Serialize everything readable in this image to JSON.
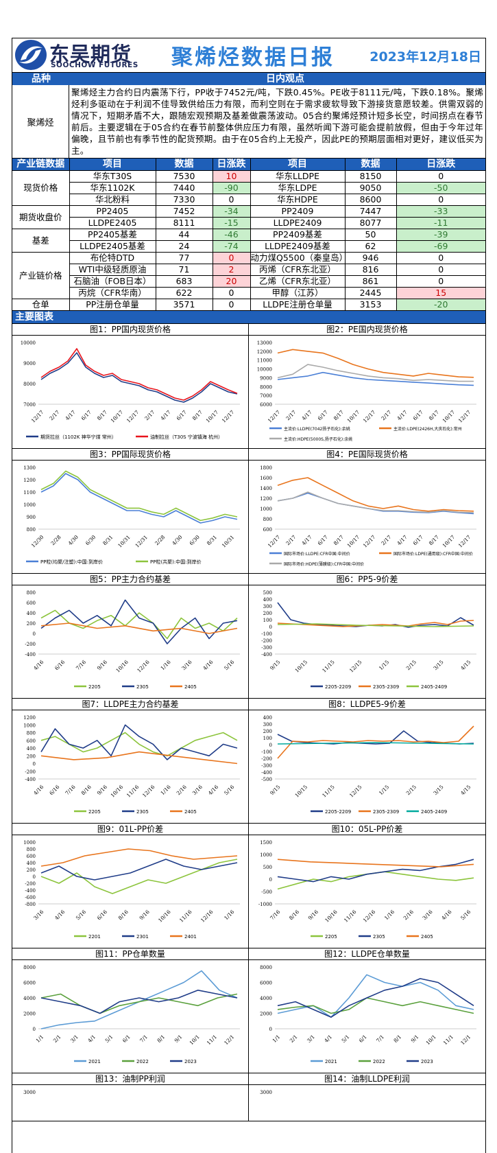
{
  "header": {
    "logo_cn": "东吴期货",
    "logo_en": "SOOCHOW FUTURES",
    "title": "聚烯烃数据日报",
    "date": "2023年12月18日"
  },
  "view": {
    "col1": "品种",
    "col2": "日内观点",
    "label": "聚烯烃",
    "text": "聚烯烃主力合约日内震荡下行，PP收于7452元/吨，下跌0.45%。PE收于8111元/吨，下跌0.18%。聚烯烃利多驱动在于利润不佳导致供给压力有限，而利空则在于需求疲软导致下游接货意愿较差。供需双弱的情况下，短期矛盾不大，跟随宏观预期及基差做震荡波动。05合约聚烯烃预计短多长空，时间拐点在春节前后。主要逻辑在于05合约在春节前整体供应压力有限，虽然听闻下游可能会提前放假，但由于今年过年偏晚，且节前也有季节性的配货预期。由于在05合约上无投产，因此PE的预期层面相对更好，建议低买为主。"
  },
  "table": {
    "headers": [
      "产业链数据",
      "项目",
      "数据",
      "日涨跌",
      "项目",
      "数据",
      "日涨跌"
    ],
    "groups": [
      {
        "name": "现货价格",
        "rows": [
          {
            "a": "华东T30S",
            "av": "7530",
            "ac": "10",
            "at": "up",
            "b": "华东LLDPE",
            "bv": "8150",
            "bc": "0",
            "bt": ""
          },
          {
            "a": "华东1102K",
            "av": "7440",
            "ac": "-90",
            "at": "dn",
            "b": "华东LDPE",
            "bv": "9050",
            "bc": "-50",
            "bt": "dn"
          },
          {
            "a": "华北粉料",
            "av": "7330",
            "ac": "0",
            "at": "",
            "b": "华东HDPE",
            "bv": "8600",
            "bc": "0",
            "bt": ""
          }
        ]
      },
      {
        "name": "期货收盘价",
        "rows": [
          {
            "a": "PP2405",
            "av": "7452",
            "ac": "-34",
            "at": "dn",
            "b": "PP2409",
            "bv": "7447",
            "bc": "-33",
            "bt": "dn"
          },
          {
            "a": "LLDPE2405",
            "av": "8111",
            "ac": "-15",
            "at": "dn",
            "b": "LLDPE2409",
            "bv": "8077",
            "bc": "-11",
            "bt": "dn"
          }
        ]
      },
      {
        "name": "基差",
        "rows": [
          {
            "a": "PP2405基差",
            "av": "44",
            "ac": "-46",
            "at": "dn",
            "b": "PP2409基差",
            "bv": "50",
            "bc": "-39",
            "bt": "dn"
          },
          {
            "a": "LLDPE2405基差",
            "av": "24",
            "ac": "-74",
            "at": "dn",
            "b": "LLDPE2409基差",
            "bv": "62",
            "bc": "-69",
            "bt": "dn"
          }
        ]
      },
      {
        "name": "产业链价格",
        "rows": [
          {
            "a": "布伦特DTD",
            "av": "77",
            "ac": "0",
            "at": "up",
            "b": "动力煤Q5500（秦皇岛）",
            "bv": "946",
            "bc": "0",
            "bt": ""
          },
          {
            "a": "WTI中级轻质原油",
            "av": "71",
            "ac": "2",
            "at": "up",
            "b": "丙烯（CFR东北亚）",
            "bv": "816",
            "bc": "0",
            "bt": ""
          },
          {
            "a": "石脑油（FOB日本）",
            "av": "683",
            "ac": "20",
            "at": "up",
            "b": "乙烯（CFR东北亚）",
            "bv": "861",
            "bc": "0",
            "bt": ""
          },
          {
            "a": "丙烷（CFR华南）",
            "av": "622",
            "ac": "0",
            "at": "",
            "b": "甲醇（江苏）",
            "bv": "2445",
            "bc": "15",
            "bt": "up"
          }
        ]
      },
      {
        "name": "仓单",
        "rows": [
          {
            "a": "PP注册仓单量",
            "av": "3571",
            "ac": "0",
            "at": "",
            "b": "LLDPE注册仓单量",
            "bv": "3153",
            "bc": "-20",
            "bt": "dn"
          }
        ]
      }
    ]
  },
  "section": "主要图表",
  "colors": {
    "blue": "#1f3c88",
    "red": "#e8141c",
    "orange": "#e8741c",
    "gray": "#a9a9a9",
    "green": "#8cc43c",
    "lblue": "#4a7fd6",
    "teal": "#00a99d",
    "green2": "#5aa03c",
    "sky": "#5b9bd5"
  },
  "charts": [
    {
      "cap": "图1：PP国内现货价格",
      "type": "line",
      "yt": [
        "10000",
        "9000",
        "8000",
        "7000"
      ],
      "xt": [
        "12/17",
        "2/17",
        "4/17",
        "6/17",
        "8/17",
        "10/17",
        "12/17",
        "2/17",
        "4/17",
        "6/17",
        "8/17",
        "10/17",
        "12/17"
      ],
      "legend": [
        "期货拉丝（1102K 神华宁煤 常州）",
        "油制拉丝（T30S 宁波镇海 杭州）"
      ],
      "lc": [
        "blue",
        "red"
      ],
      "series": [
        [
          8200,
          8500,
          8700,
          9000,
          9500,
          8800,
          8500,
          8300,
          8400,
          8100,
          8000,
          7900,
          7700,
          7600,
          7400,
          7200,
          7100,
          7300,
          7600,
          8000,
          7800,
          7600,
          7500
        ],
        [
          8300,
          8600,
          8800,
          9100,
          9700,
          8900,
          8600,
          8400,
          8500,
          8200,
          8100,
          8000,
          7800,
          7700,
          7500,
          7300,
          7200,
          7400,
          7700,
          8100,
          7900,
          7700,
          7530
        ]
      ]
    },
    {
      "cap": "图2：PE国内现货价格",
      "type": "line",
      "yt": [
        "13000",
        "12000",
        "11000",
        "10000",
        "9000",
        "8000",
        "7000",
        "6000"
      ],
      "xt": [
        "12/17",
        "2/17",
        "4/17",
        "6/17",
        "8/17",
        "10/17",
        "12/17",
        "2/17",
        "4/17",
        "6/17",
        "8/17",
        "10/17",
        "12/17"
      ],
      "legend": [
        "主流价:LLDPE(7042扬子石化):余姚",
        "主流价:LDPE(2426H,大庆石化):常州",
        "主流价:HDPE(5000S,扬子石化):余姚"
      ],
      "lc": [
        "lblue",
        "orange",
        "gray"
      ],
      "series": [
        [
          8800,
          9000,
          9200,
          9600,
          9300,
          9000,
          8800,
          8700,
          8600,
          8500,
          8400,
          8300,
          8200,
          8150
        ],
        [
          11800,
          12200,
          12000,
          11800,
          11200,
          10500,
          10000,
          9600,
          9400,
          9200,
          9500,
          9300,
          9100,
          9050
        ],
        [
          9000,
          9400,
          10500,
          10200,
          9800,
          9500,
          9200,
          9000,
          8900,
          8700,
          8800,
          8700,
          8600,
          8600
        ]
      ]
    },
    {
      "cap": "图3：PP国际现货价格",
      "type": "line",
      "yt": [
        "1300",
        "1200",
        "1100",
        "1000",
        "900",
        "800"
      ],
      "xt": [
        "12/30",
        "2/28",
        "4/30",
        "6/30",
        "8/31",
        "10/31",
        "12/31",
        "2/28",
        "4/30",
        "6/30",
        "8/31",
        "10/31"
      ],
      "legend": [
        "PP粒(均聚/注塑):中国:到岸价",
        "PP粒(共聚):中国:到岸价"
      ],
      "lc": [
        "lblue",
        "green"
      ],
      "series": [
        [
          1100,
          1150,
          1250,
          1200,
          1100,
          1050,
          1000,
          950,
          950,
          920,
          900,
          950,
          900,
          850,
          870,
          900,
          880
        ],
        [
          1120,
          1170,
          1270,
          1220,
          1120,
          1070,
          1020,
          970,
          970,
          940,
          920,
          970,
          920,
          870,
          890,
          920,
          900
        ]
      ]
    },
    {
      "cap": "图4：PE国际现货价格",
      "type": "line",
      "yt": [
        "1800",
        "1600",
        "1400",
        "1200",
        "1000",
        "800",
        "600"
      ],
      "xt": [
        "12/17",
        "2/17",
        "4/17",
        "6/17",
        "8/17",
        "10/17",
        "12/17",
        "2/17",
        "4/17",
        "6/17",
        "8/17",
        "10/17",
        "12/17"
      ],
      "legend": [
        "国际市场价:LLDPE:CFR中国:中间价",
        "国际市场价:LDPE(通用级):CFR中国:中间价",
        "国际市场价:HDPE(薄膜级):CFR中国:中间价"
      ],
      "lc": [
        "lblue",
        "orange",
        "gray"
      ],
      "series": [
        [
          1150,
          1200,
          1300,
          1200,
          1100,
          1050,
          1000,
          950,
          950,
          930,
          920,
          950,
          920,
          900
        ],
        [
          1450,
          1550,
          1600,
          1450,
          1300,
          1150,
          1050,
          1000,
          1050,
          980,
          950,
          980,
          960,
          950
        ],
        [
          1150,
          1200,
          1320,
          1200,
          1100,
          1050,
          1000,
          960,
          960,
          940,
          930,
          960,
          930,
          920
        ]
      ]
    },
    {
      "cap": "图5：PP主力合约基差",
      "type": "line",
      "yt": [
        "800",
        "600",
        "400",
        "200",
        "0",
        "-200",
        "-400"
      ],
      "xt": [
        "4/16",
        "6/16",
        "7/16",
        "9/16",
        "10/16",
        "12/16",
        "1/16",
        "3/16",
        "4/16",
        "5/16"
      ],
      "legend": [
        "2205",
        "2305",
        "2405"
      ],
      "lc": [
        "green",
        "blue",
        "orange"
      ],
      "series": [
        [
          300,
          450,
          200,
          100,
          250,
          350,
          150,
          400,
          200,
          -100,
          300,
          100,
          200,
          50,
          300
        ],
        [
          100,
          300,
          450,
          200,
          350,
          150,
          650,
          300,
          200,
          -200,
          100,
          300,
          -100,
          200,
          250
        ],
        [
          150,
          200,
          100,
          150,
          50,
          100,
          0,
          100
        ]
      ]
    },
    {
      "cap": "图6：PP5-9价差",
      "type": "line",
      "yt": [
        "500",
        "400",
        "300",
        "200",
        "100",
        "0",
        "-100",
        "-200",
        "-300",
        "-400"
      ],
      "xt": [
        "9/15",
        "10/15",
        "11/15",
        "12/15",
        "1/15",
        "2/15",
        "3/15",
        "4/15"
      ],
      "legend": [
        "2205-2209",
        "2305-2309",
        "2405-2409"
      ],
      "lc": [
        "blue",
        "orange",
        "green"
      ],
      "series": [
        [
          350,
          100,
          50,
          30,
          20,
          10,
          0,
          20,
          10,
          30,
          -10,
          20,
          30,
          10,
          130,
          20
        ],
        [
          50,
          40,
          30,
          20,
          10,
          0,
          10,
          20,
          30,
          20,
          10,
          40,
          60,
          30,
          80,
          90
        ],
        [
          30,
          40,
          20,
          10,
          0,
          10
        ]
      ]
    },
    {
      "cap": "图7：LLDPE主力合约基差",
      "type": "line",
      "yt": [
        "1200",
        "1000",
        "800",
        "600",
        "400",
        "200",
        "0",
        "-200",
        "-400"
      ],
      "xt": [
        "4/16",
        "6/16",
        "7/16",
        "8/16",
        "9/16",
        "10/16",
        "11/16",
        "12/16",
        "1/16",
        "2/16",
        "3/16",
        "4/16",
        "5/16"
      ],
      "legend": [
        "2205",
        "2305",
        "2405"
      ],
      "lc": [
        "green",
        "blue",
        "orange"
      ],
      "series": [
        [
          600,
          700,
          500,
          300,
          400,
          600,
          800,
          500,
          300,
          200,
          400,
          600,
          700,
          800,
          600
        ],
        [
          300,
          900,
          500,
          400,
          600,
          200,
          1000,
          700,
          500,
          100,
          400,
          300,
          200,
          500,
          400
        ],
        [
          200,
          100,
          150,
          300,
          200,
          100,
          0
        ]
      ]
    },
    {
      "cap": "图8：LLDPE5-9价差",
      "type": "line",
      "yt": [
        "400",
        "300",
        "200",
        "100",
        "0",
        "-100",
        "-200",
        "-300",
        "-400",
        "-500"
      ],
      "xt": [
        "9/15",
        "10/15",
        "11/15",
        "12/15",
        "1/15",
        "2/15",
        "3/15",
        "4/15"
      ],
      "legend": [
        "2205-2209",
        "2305-2309",
        "2405-2409"
      ],
      "lc": [
        "blue",
        "orange",
        "teal"
      ],
      "series": [
        [
          150,
          50,
          30,
          20,
          10,
          30,
          20,
          10,
          20,
          200,
          50,
          30,
          20,
          10,
          20
        ],
        [
          -200,
          50,
          40,
          60,
          50,
          40,
          60,
          50,
          60,
          40,
          50,
          30,
          50,
          270
        ],
        [
          10,
          20,
          30,
          20,
          10
        ]
      ]
    },
    {
      "cap": "图9：01L-PP价差",
      "type": "line",
      "yt": [
        "1000",
        "800",
        "600",
        "400",
        "200",
        "0",
        "-200",
        "-400",
        "-600",
        "-800"
      ],
      "xt": [
        "3/16",
        "4/16",
        "5/16",
        "6/16",
        "8/16",
        "9/16",
        "10/16",
        "11/16",
        "12/16",
        "1/16"
      ],
      "legend": [
        "2201",
        "2301",
        "2401"
      ],
      "lc": [
        "green",
        "blue",
        "orange"
      ],
      "series": [
        [
          0,
          -200,
          100,
          -300,
          -500,
          -300,
          -100,
          -200,
          0,
          200,
          400,
          500
        ],
        [
          100,
          300,
          0,
          -100,
          0,
          100,
          300,
          500,
          300,
          200,
          300,
          400
        ],
        [
          300,
          400,
          600,
          700,
          800,
          750,
          600,
          500,
          550,
          600
        ]
      ]
    },
    {
      "cap": "图10：05L-PP价差",
      "type": "line",
      "yt": [
        "1500",
        "1000",
        "500",
        "0",
        "-500",
        "-1000"
      ],
      "xt": [
        "7/16",
        "8/16",
        "9/16",
        "10/16",
        "11/16",
        "12/16",
        "1/16",
        "2/16",
        "3/16",
        "4/16",
        "5/16"
      ],
      "legend": [
        "2205",
        "2305",
        "2405"
      ],
      "lc": [
        "green",
        "blue",
        "orange"
      ],
      "series": [
        [
          -400,
          -200,
          0,
          -100,
          100,
          200,
          300,
          200,
          100,
          0,
          -50,
          50
        ],
        [
          100,
          0,
          -100,
          100,
          0,
          200,
          300,
          400,
          350,
          500,
          600,
          800
        ],
        [
          800,
          700,
          650,
          600,
          550,
          500,
          600
        ]
      ]
    },
    {
      "cap": "图11：PP仓单数量",
      "type": "line",
      "yt": [
        "8000",
        "6000",
        "4000",
        "2000",
        "0"
      ],
      "xt": [
        "1/1",
        "2/1",
        "3/1",
        "4/1",
        "5/1",
        "6/1",
        "7/1",
        "8/1",
        "9/1",
        "10/1",
        "11/1",
        "12/1"
      ],
      "legend": [
        "2021",
        "2022",
        "2023"
      ],
      "lc": [
        "sky",
        "green2",
        "blue"
      ],
      "series": [
        [
          0,
          500,
          800,
          1000,
          2000,
          3000,
          4000,
          5000,
          6000,
          7500,
          5000,
          4000
        ],
        [
          4000,
          4500,
          3000,
          2000,
          3000,
          3500,
          4000,
          3500,
          3000,
          4000,
          4500
        ],
        [
          4000,
          3500,
          3000,
          2000,
          3500,
          4000,
          3500,
          4000,
          5000,
          4500,
          4000
        ]
      ]
    },
    {
      "cap": "图12：LLDPE仓单数量",
      "type": "line",
      "yt": [
        "8000",
        "6000",
        "4000",
        "2000",
        "0"
      ],
      "xt": [
        "1/1",
        "2/1",
        "3/1",
        "4/1",
        "5/1",
        "6/1",
        "7/1",
        "8/1",
        "9/1",
        "10/1",
        "11/1",
        "12/1"
      ],
      "legend": [
        "2021",
        "2022",
        "2023"
      ],
      "lc": [
        "sky",
        "green2",
        "blue"
      ],
      "series": [
        [
          2000,
          2500,
          3000,
          1500,
          4000,
          7000,
          6000,
          5500,
          6000,
          5000,
          3000,
          2500
        ],
        [
          2500,
          2800,
          3000,
          2000,
          2500,
          4000,
          3500,
          3000,
          3500,
          3000,
          2500,
          2000
        ],
        [
          3000,
          3500,
          2500,
          1500,
          3000,
          4000,
          5000,
          5500,
          6500,
          6000,
          4500,
          3000
        ]
      ]
    },
    {
      "cap": "图13：油制PP利润",
      "type": "short",
      "yt": [
        "3000"
      ],
      "xt": [],
      "legend": [],
      "lc": [],
      "series": []
    },
    {
      "cap": "图14：油制LLDPE利润",
      "type": "short",
      "yt": [
        "3000"
      ],
      "xt": [],
      "legend": [],
      "lc": [],
      "series": []
    }
  ]
}
